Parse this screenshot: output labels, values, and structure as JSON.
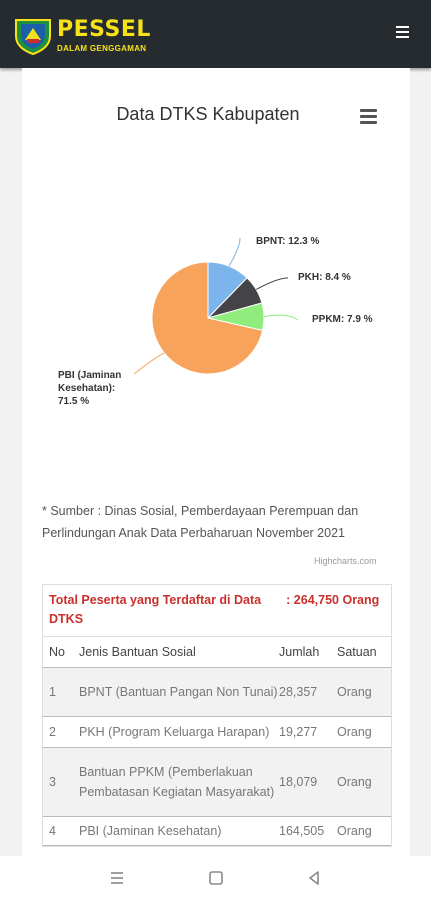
{
  "header": {
    "brand_name": "PESSEL",
    "brand_sub": "DALAM GENGGAMAN"
  },
  "chart_data": {
    "type": "pie",
    "title": "Data DTKS Kabupaten",
    "series": [
      {
        "label": "BPNT",
        "value": 12.3,
        "display": "BPNT: 12.3 %",
        "color": "#7cb5ec"
      },
      {
        "label": "PKH",
        "value": 8.4,
        "display": "PKH: 8.4 %",
        "color": "#434348"
      },
      {
        "label": "PPKM",
        "value": 7.9,
        "display": "PPKM: 7.9 %",
        "color": "#90ed7d"
      },
      {
        "label": "PBI (Jaminan Kesehatan)",
        "value": 71.5,
        "display_lines": [
          "PBI (Jaminan",
          "Kesehatan):",
          "71.5 %"
        ],
        "color": "#f7a35c"
      }
    ],
    "credit": "Highcharts.com"
  },
  "source_note": "* Sumber : Dinas Sosial, Pemberdayaan Perempuan dan Perlindungan Anak Data Perbaharuan November 2021",
  "table": {
    "total_label": "Total Peserta yang Terdaftar di Data DTKS",
    "total_value": ": 264,750 Orang",
    "headers": [
      "No",
      "Jenis Bantuan Sosial",
      "Jumlah",
      "Satuan"
    ],
    "rows": [
      {
        "no": "1",
        "jenis": "BPNT (Bantuan Pangan Non Tunai)",
        "jumlah": "28,357",
        "satuan": "Orang"
      },
      {
        "no": "2",
        "jenis": "PKH (Program Keluarga Harapan)",
        "jumlah": "19,277",
        "satuan": "Orang"
      },
      {
        "no": "3",
        "jenis": "Bantuan PPKM (Pemberlakuan Pembatasan Kegiatan Masyarakat)",
        "jumlah": "18,079",
        "satuan": "Orang"
      },
      {
        "no": "4",
        "jenis": "PBI (Jaminan Kesehatan)",
        "jumlah": "164,505",
        "satuan": "Orang"
      }
    ]
  },
  "icons": {
    "menu": "menu-icon",
    "chart_menu": "chart-menu-icon",
    "nav_recent": "recent-apps-icon",
    "nav_home": "home-icon",
    "nav_back": "back-icon"
  }
}
